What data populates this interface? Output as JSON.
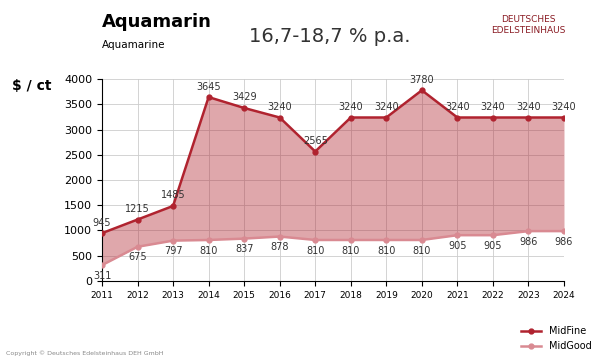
{
  "chart_data": {
    "type": "area",
    "title": "Aquamarin",
    "subtitle": "Aquamarine",
    "ylabel": "$ / ct",
    "annotations": [
      "16,7-18,7 % p.a."
    ],
    "logo": [
      "DEUTSCHES",
      "EDELSTEINHAUS"
    ],
    "copyright": "Copyright © Deutsches Edelsteinhaus DEH GmbH",
    "x": [
      2011,
      2012,
      2013,
      2014,
      2015,
      2016,
      2017,
      2018,
      2019,
      2020,
      2021,
      2022,
      2023,
      2024
    ],
    "series": [
      {
        "name": "MidFine",
        "color": "#b0232f",
        "marker": "circle",
        "line_style": "solid",
        "values": [
          945,
          1215,
          1485,
          3645,
          3429,
          3240,
          2565,
          3240,
          3240,
          3780,
          3240,
          3240,
          3240,
          3240
        ]
      },
      {
        "name": "MidGood",
        "color": "#d98a92",
        "marker": "circle",
        "line_style": "solid",
        "values": [
          311,
          675,
          797,
          810,
          837,
          878,
          810,
          810,
          810,
          810,
          905,
          905,
          986,
          986
        ]
      }
    ],
    "xlim": [
      2011,
      2024
    ],
    "xticks": [
      2011,
      2012,
      2013,
      2014,
      2015,
      2016,
      2017,
      2018,
      2019,
      2020,
      2021,
      2022,
      2023,
      2024
    ],
    "ylim": [
      0,
      4000
    ],
    "yticks": [
      0,
      500,
      1000,
      1500,
      2000,
      2500,
      3000,
      3500,
      4000
    ],
    "grid": true,
    "legend": "lower right",
    "data_labels": true
  }
}
